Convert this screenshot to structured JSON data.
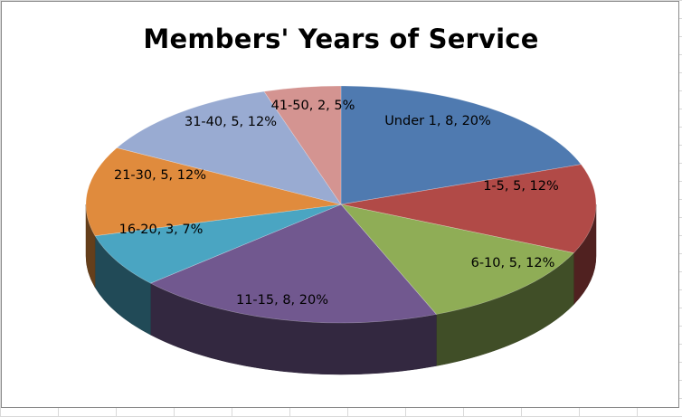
{
  "chart_data": {
    "type": "pie",
    "title": "Members' Years of Service",
    "three_d": true,
    "legend": "none",
    "slices": [
      {
        "category": "Under 1",
        "value": 8,
        "percent": "20%",
        "label": "Under 1, 8, 20%",
        "color": "#4f7ab0"
      },
      {
        "category": "1-5",
        "value": 5,
        "percent": "12%",
        "label": "1-5, 5, 12%",
        "color": "#b14a47"
      },
      {
        "category": "6-10",
        "value": 5,
        "percent": "12%",
        "label": "6-10, 5, 12%",
        "color": "#8fad56"
      },
      {
        "category": "11-15",
        "value": 8,
        "percent": "20%",
        "label": "11-15, 8, 20%",
        "color": "#71588f"
      },
      {
        "category": "16-20",
        "value": 3,
        "percent": "7%",
        "label": "16-20, 3, 7%",
        "color": "#4aa5c2"
      },
      {
        "category": "21-30",
        "value": 5,
        "percent": "12%",
        "label": "21-30, 5, 12%",
        "color": "#e08b3d"
      },
      {
        "category": "31-40",
        "value": 5,
        "percent": "12%",
        "label": "31-40, 5, 12%",
        "color": "#99abd2"
      },
      {
        "category": "41-50",
        "value": 2,
        "percent": "5%",
        "label": "41-50, 2, 5%",
        "color": "#d49491"
      }
    ]
  }
}
